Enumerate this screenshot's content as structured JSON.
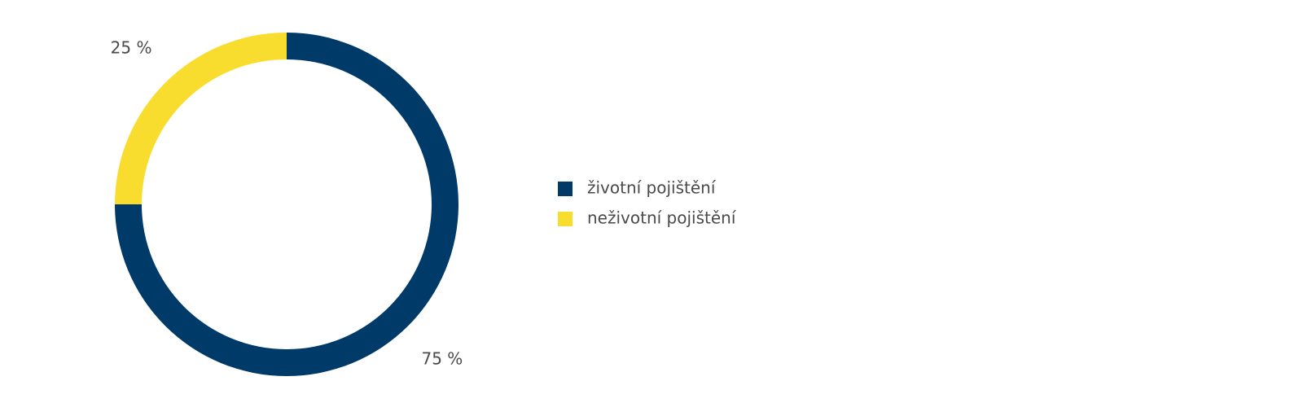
{
  "chart_data": {
    "type": "donut",
    "categories": [
      "životní pojištění",
      "neživotní pojištění"
    ],
    "values": [
      75,
      25
    ],
    "value_labels": [
      "75 %",
      "25 %"
    ],
    "colors": [
      "#003a69",
      "#f8dd2e"
    ],
    "legend": "right"
  }
}
